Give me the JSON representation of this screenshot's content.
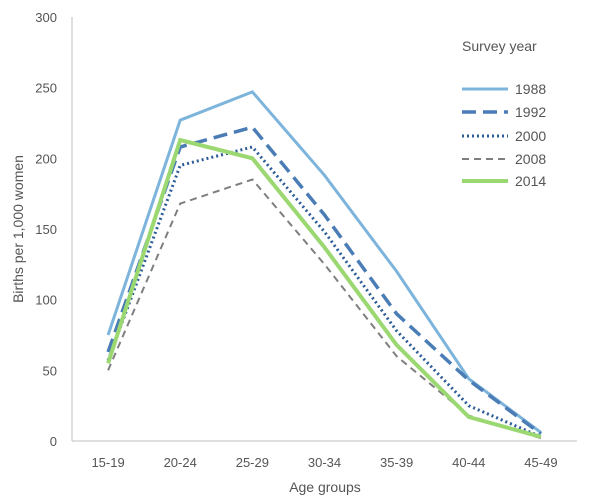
{
  "chart_data": {
    "type": "line",
    "xlabel": "Age groups",
    "ylabel": "Births per 1,000 women",
    "categories": [
      "15-19",
      "20-24",
      "25-29",
      "30-34",
      "35-39",
      "40-44",
      "45-49"
    ],
    "ylim": [
      0,
      300
    ],
    "yticks": [
      0,
      50,
      100,
      150,
      200,
      250,
      300
    ],
    "grid": false,
    "legend_title": "Survey year",
    "legend_position": "top-right",
    "series": [
      {
        "name": "1988",
        "values": [
          75,
          227,
          247,
          188,
          120,
          44,
          6
        ],
        "color": "#7db4dc",
        "style": "solid"
      },
      {
        "name": "1992",
        "values": [
          63,
          208,
          222,
          160,
          90,
          43,
          5
        ],
        "color": "#4a7db6",
        "style": "dashed"
      },
      {
        "name": "2000",
        "values": [
          57,
          195,
          208,
          148,
          78,
          25,
          3
        ],
        "color": "#2b5c97",
        "style": "dotted"
      },
      {
        "name": "2008",
        "values": [
          50,
          168,
          185,
          125,
          60,
          18,
          2
        ],
        "color": "#7f7f7f",
        "style": "dashed-thin"
      },
      {
        "name": "2014",
        "values": [
          55,
          213,
          200,
          137,
          68,
          17,
          3
        ],
        "color": "#9bd872",
        "style": "solid-thick"
      }
    ]
  }
}
